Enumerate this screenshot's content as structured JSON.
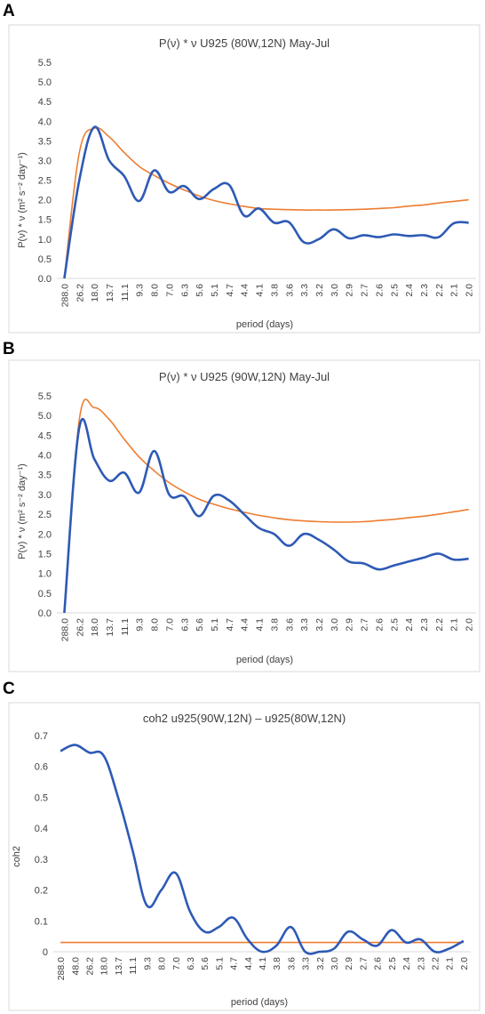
{
  "panels": [
    {
      "letter": "A"
    },
    {
      "letter": "B"
    },
    {
      "letter": "C"
    }
  ],
  "chart_data": [
    {
      "type": "line",
      "title": "P(ν) * ν  U925 (80W,12N)  May-Jul",
      "xlabel": "period (days)",
      "ylabel": "P(ν) * ν  (m² s⁻² day⁻¹)",
      "ylim": [
        0,
        5.5
      ],
      "yticks": [
        "0.0",
        "0.5",
        "1.0",
        "1.5",
        "2.0",
        "2.5",
        "3.0",
        "3.5",
        "4.0",
        "4.5",
        "5.0",
        "5.5"
      ],
      "categories": [
        "288.0",
        "26.2",
        "18.0",
        "13.7",
        "11.1",
        "9.3",
        "8.0",
        "7.0",
        "6.3",
        "5.6",
        "5.1",
        "4.7",
        "4.4",
        "4.1",
        "3.8",
        "3.6",
        "3.3",
        "3.2",
        "3.0",
        "2.9",
        "2.7",
        "2.6",
        "2.5",
        "2.4",
        "2.3",
        "2.2",
        "2.1",
        "2.0"
      ],
      "series": [
        {
          "color": "#2e5ab5",
          "values": [
            0,
            2.5,
            3.85,
            3.0,
            2.6,
            1.97,
            2.75,
            2.2,
            2.35,
            2.02,
            2.28,
            2.38,
            1.6,
            1.78,
            1.42,
            1.43,
            0.92,
            1.0,
            1.25,
            1.02,
            1.1,
            1.05,
            1.12,
            1.08,
            1.1,
            1.05,
            1.4,
            1.42
          ]
        },
        {
          "color": "#ed7d31",
          "values": [
            0,
            3.2,
            3.82,
            3.6,
            3.2,
            2.85,
            2.62,
            2.42,
            2.25,
            2.1,
            1.98,
            1.9,
            1.83,
            1.78,
            1.76,
            1.75,
            1.74,
            1.74,
            1.74,
            1.75,
            1.76,
            1.78,
            1.8,
            1.84,
            1.87,
            1.92,
            1.96,
            2.0
          ]
        }
      ]
    },
    {
      "type": "line",
      "title": "P(ν) * ν  U925 (90W,12N)  May-Jul",
      "xlabel": "period (days)",
      "ylabel": "P(ν) * ν  (m² s⁻² day⁻¹)",
      "ylim": [
        0,
        5.5
      ],
      "yticks": [
        "0.0",
        "0.5",
        "1.0",
        "1.5",
        "2.0",
        "2.5",
        "3.0",
        "3.5",
        "4.0",
        "4.5",
        "5.0",
        "5.5"
      ],
      "categories": [
        "288.0",
        "26.2",
        "18.0",
        "13.7",
        "11.1",
        "9.3",
        "8.0",
        "7.0",
        "6.3",
        "5.6",
        "5.1",
        "4.7",
        "4.4",
        "4.1",
        "3.8",
        "3.6",
        "3.3",
        "3.2",
        "3.0",
        "2.9",
        "2.7",
        "2.6",
        "2.5",
        "2.4",
        "2.3",
        "2.2",
        "2.1",
        "2.0"
      ],
      "series": [
        {
          "color": "#2e5ab5",
          "values": [
            0,
            4.7,
            3.9,
            3.35,
            3.55,
            3.05,
            4.1,
            3.0,
            2.95,
            2.45,
            2.97,
            2.85,
            2.5,
            2.15,
            2.0,
            1.7,
            2.0,
            1.85,
            1.6,
            1.3,
            1.25,
            1.1,
            1.2,
            1.3,
            1.4,
            1.5,
            1.35,
            1.37
          ]
        },
        {
          "color": "#ed7d31",
          "values": [
            0,
            4.9,
            5.2,
            4.9,
            4.4,
            3.95,
            3.6,
            3.3,
            3.07,
            2.88,
            2.75,
            2.64,
            2.55,
            2.47,
            2.41,
            2.36,
            2.33,
            2.31,
            2.3,
            2.3,
            2.31,
            2.34,
            2.37,
            2.41,
            2.45,
            2.5,
            2.56,
            2.62
          ]
        }
      ]
    },
    {
      "type": "line",
      "title": "coh2 u925(90W,12N) – u925(80W,12N)",
      "xlabel": "period (days)",
      "ylabel": "coh2",
      "ylim": [
        0,
        0.7
      ],
      "yticks": [
        "0",
        "0.1",
        "0.2",
        "0.3",
        "0.4",
        "0.5",
        "0.6",
        "0.7"
      ],
      "categories": [
        "288.0",
        "48.0",
        "26.2",
        "18.0",
        "13.7",
        "11.1",
        "9.3",
        "8.0",
        "7.0",
        "6.3",
        "5.6",
        "5.1",
        "4.7",
        "4.4",
        "4.1",
        "3.8",
        "3.6",
        "3.3",
        "3.2",
        "3.0",
        "2.9",
        "2.7",
        "2.6",
        "2.5",
        "2.4",
        "2.3",
        "2.2",
        "2.1",
        "2.0"
      ],
      "series": [
        {
          "color": "#2e5ab5",
          "values": [
            0.65,
            0.67,
            0.645,
            0.635,
            0.5,
            0.33,
            0.15,
            0.2,
            0.255,
            0.13,
            0.065,
            0.08,
            0.11,
            0.04,
            0.0,
            0.02,
            0.08,
            0.0,
            0.0,
            0.01,
            0.065,
            0.04,
            0.02,
            0.07,
            0.03,
            0.04,
            0.0,
            0.01,
            0.035
          ]
        },
        {
          "color": "#ed7d31",
          "values": [
            0.03,
            0.03,
            0.03,
            0.03,
            0.03,
            0.03,
            0.03,
            0.03,
            0.03,
            0.03,
            0.03,
            0.03,
            0.03,
            0.03,
            0.03,
            0.03,
            0.03,
            0.03,
            0.03,
            0.03,
            0.03,
            0.03,
            0.03,
            0.03,
            0.03,
            0.03,
            0.03,
            0.03,
            0.03
          ]
        }
      ]
    }
  ]
}
